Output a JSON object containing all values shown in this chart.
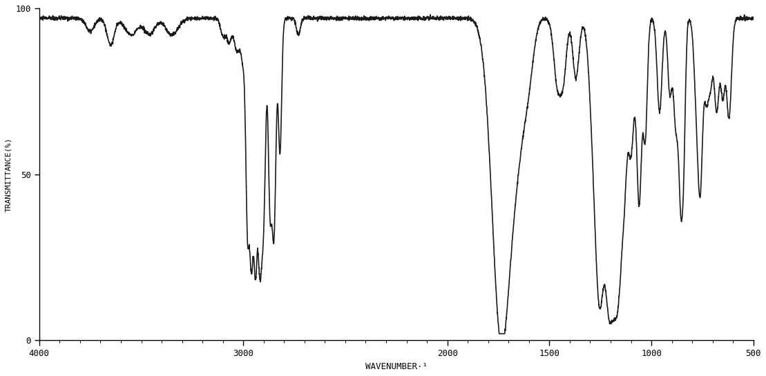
{
  "title": "",
  "xlabel": "WAVENUMBER·¹",
  "ylabel": "TRANSMITTANCE(%)",
  "xlim": [
    4000,
    500
  ],
  "ylim": [
    0,
    100
  ],
  "yticks": [
    0,
    50,
    100
  ],
  "xticks": [
    4000,
    3000,
    2000,
    1500,
    1000,
    500
  ],
  "line_color": "#1a1a1a",
  "line_width": 1.2,
  "background_color": "#ffffff",
  "xlabel_fontsize": 9,
  "ylabel_fontsize": 8
}
